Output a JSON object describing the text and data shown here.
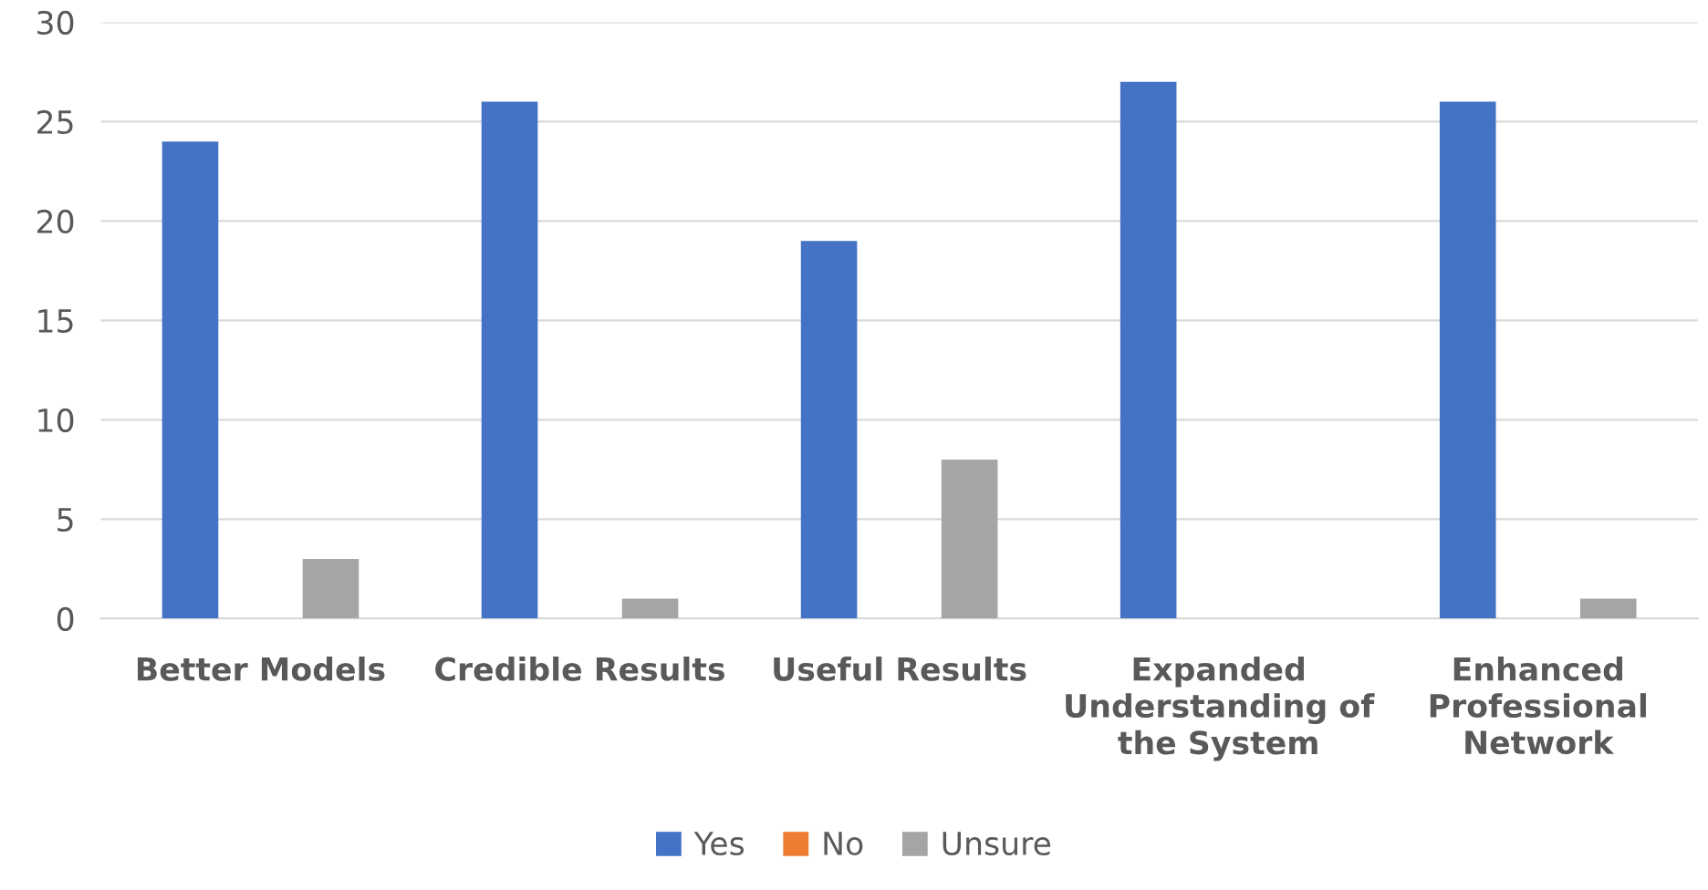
{
  "chart_data": {
    "type": "bar",
    "categories": [
      "Better Models",
      "Credible Results",
      "Useful Results",
      "Expanded\nUnderstanding of\nthe System",
      "Enhanced\nProfessional\nNetwork"
    ],
    "series": [
      {
        "name": "Yes",
        "color": "#4472c4",
        "values": [
          24,
          26,
          19,
          27,
          26
        ]
      },
      {
        "name": "No",
        "color": "#ed7d31",
        "values": [
          0,
          0,
          0,
          0,
          0
        ]
      },
      {
        "name": "Unsure",
        "color": "#a5a5a5",
        "values": [
          3,
          1,
          8,
          0,
          1
        ]
      }
    ],
    "ylim": [
      0,
      30
    ],
    "yticks": [
      0,
      5,
      10,
      15,
      20,
      25,
      30
    ],
    "grid": "y",
    "legend": "bottom"
  }
}
